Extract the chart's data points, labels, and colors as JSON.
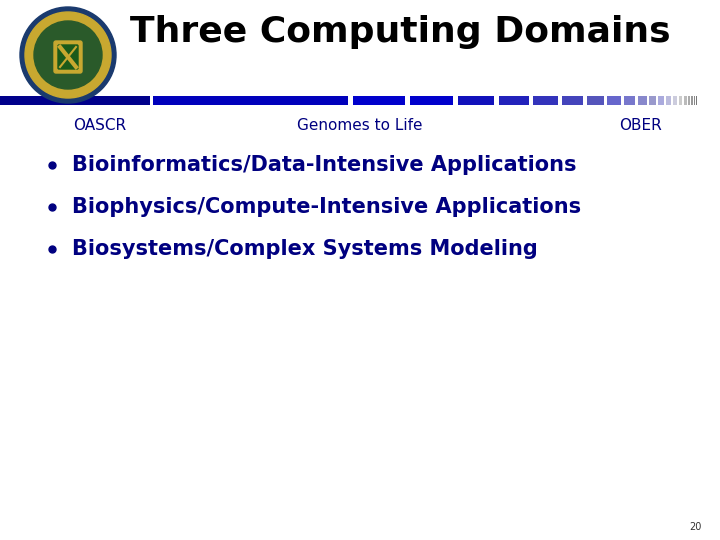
{
  "title": "Three Computing Domains",
  "title_color": "#000000",
  "title_fontsize": 26,
  "title_fontweight": "bold",
  "background_color": "#ffffff",
  "label1": "OASCR",
  "label2": "Genomes to Life",
  "label3": "OBER",
  "label_color": "#000080",
  "label_fontsize": 11,
  "bullet_items": [
    "Bioinformatics/Data-Intensive Applications",
    "Biophysics/Compute-Intensive Applications",
    "Biosystems/Complex Systems Modeling"
  ],
  "bullet_color": "#000080",
  "bullet_fontsize": 15,
  "bullet_fontweight": "bold",
  "page_number": "20",
  "page_number_fontsize": 7,
  "page_number_color": "#333333",
  "bar_segments": [
    [
      0,
      150,
      "#00008B"
    ],
    [
      150,
      3,
      "#ffffff"
    ],
    [
      153,
      195,
      "#0000BB"
    ],
    [
      348,
      5,
      "#ffffff"
    ],
    [
      353,
      52,
      "#0000CC"
    ],
    [
      405,
      5,
      "#ffffff"
    ],
    [
      410,
      43,
      "#0000CC"
    ],
    [
      453,
      5,
      "#ffffff"
    ],
    [
      458,
      36,
      "#1111BB"
    ],
    [
      494,
      5,
      "#ffffff"
    ],
    [
      499,
      30,
      "#2222BB"
    ],
    [
      529,
      4,
      "#ffffff"
    ],
    [
      533,
      25,
      "#3333BB"
    ],
    [
      558,
      4,
      "#ffffff"
    ],
    [
      562,
      21,
      "#4444BB"
    ],
    [
      583,
      4,
      "#ffffff"
    ],
    [
      587,
      17,
      "#5555BB"
    ],
    [
      604,
      3,
      "#ffffff"
    ],
    [
      607,
      14,
      "#6666CC"
    ],
    [
      621,
      3,
      "#ffffff"
    ],
    [
      624,
      11,
      "#7777CC"
    ],
    [
      635,
      3,
      "#ffffff"
    ],
    [
      638,
      9,
      "#8888CC"
    ],
    [
      647,
      2,
      "#ffffff"
    ],
    [
      649,
      7,
      "#9999CC"
    ],
    [
      656,
      2,
      "#ffffff"
    ],
    [
      658,
      6,
      "#AAAADD"
    ],
    [
      664,
      2,
      "#ffffff"
    ],
    [
      666,
      5,
      "#BBBBDD"
    ],
    [
      671,
      2,
      "#ffffff"
    ],
    [
      673,
      4,
      "#CCCCDD"
    ],
    [
      677,
      2,
      "#ffffff"
    ],
    [
      679,
      3,
      "#CCCCCC"
    ],
    [
      682,
      2,
      "#ffffff"
    ],
    [
      684,
      3,
      "#BBBBBB"
    ],
    [
      687,
      1,
      "#ffffff"
    ],
    [
      688,
      2,
      "#AAAAAA"
    ],
    [
      690,
      1,
      "#ffffff"
    ],
    [
      691,
      2,
      "#999999"
    ],
    [
      693,
      1,
      "#ffffff"
    ],
    [
      694,
      1,
      "#888888"
    ],
    [
      695,
      1,
      "#ffffff"
    ],
    [
      696,
      1,
      "#777777"
    ]
  ]
}
